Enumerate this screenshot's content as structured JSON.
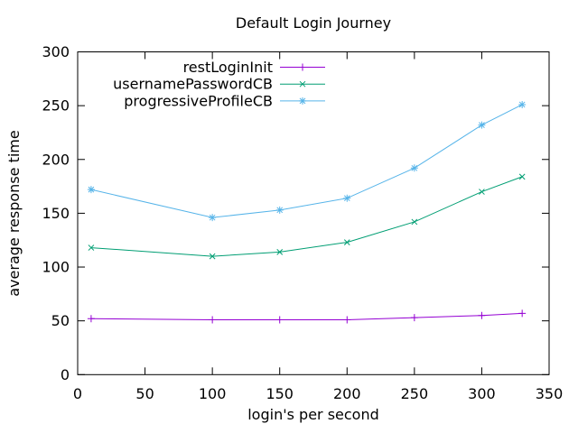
{
  "chart_data": {
    "type": "line",
    "title": "Default Login Journey",
    "xlabel": "login's per second",
    "ylabel": "average response time",
    "x": [
      10,
      100,
      150,
      200,
      250,
      300,
      330
    ],
    "series": [
      {
        "name": "restLoginInit",
        "color": "#9400D3",
        "marker": "plus",
        "values": [
          52,
          51,
          51,
          51,
          53,
          55,
          57
        ]
      },
      {
        "name": "usernamePasswordCB",
        "color": "#009E73",
        "marker": "cross",
        "values": [
          118,
          110,
          114,
          123,
          142,
          170,
          184
        ]
      },
      {
        "name": "progressiveProfileCB",
        "color": "#56B4E9",
        "marker": "asterisk",
        "values": [
          172,
          146,
          153,
          164,
          192,
          232,
          251
        ]
      }
    ],
    "xlim": [
      0,
      350
    ],
    "ylim": [
      0,
      300
    ],
    "x_ticks": [
      0,
      50,
      100,
      150,
      200,
      250,
      300,
      350
    ],
    "y_ticks": [
      0,
      50,
      100,
      150,
      200,
      250,
      300
    ],
    "grid": false,
    "legend_position": "inside-top-center",
    "background": "#ffffff",
    "text_color": "#000000",
    "axis_color": "#000000"
  }
}
